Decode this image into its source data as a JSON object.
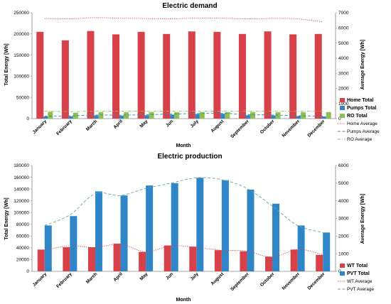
{
  "chart_data": [
    {
      "type": "bar",
      "title": "Electric demand",
      "xlabel": "Month",
      "ylabel": "Total Energy [Wh]",
      "y2label": "Average Energy [Wh]",
      "ylim": [
        0,
        250000
      ],
      "y2lim": [
        0,
        7000
      ],
      "yticks": [
        "0",
        "50000",
        "100000",
        "150000",
        "200000",
        "250000"
      ],
      "y2ticks": [
        "0",
        "1000",
        "2000",
        "3000",
        "4000",
        "5000",
        "6000",
        "7000"
      ],
      "categories": [
        "January",
        "February",
        "March",
        "April",
        "May",
        "Jun",
        "July",
        "August",
        "September",
        "October",
        "November",
        "December"
      ],
      "series": [
        {
          "name": "Home Total",
          "kind": "bar",
          "axis": "left",
          "color": "#D9414A",
          "values": [
            205000,
            185000,
            207000,
            199000,
            205000,
            200000,
            206000,
            205000,
            200000,
            206000,
            199000,
            200000
          ]
        },
        {
          "name": "Pumps Total",
          "kind": "bar",
          "axis": "left",
          "color": "#2E86C8",
          "values": [
            5000,
            5500,
            7500,
            7000,
            8000,
            9500,
            11000,
            11500,
            8000,
            7500,
            6000,
            5000
          ]
        },
        {
          "name": "RO Total",
          "kind": "bar",
          "axis": "left",
          "color": "#8CC04F",
          "values": [
            16000,
            14000,
            15500,
            15000,
            15500,
            15000,
            15500,
            15000,
            15500,
            15000,
            15000,
            15500
          ]
        },
        {
          "name": "Home Average",
          "kind": "line",
          "style": "dotted",
          "axis": "right",
          "color": "#D9414A",
          "values": [
            6620,
            6600,
            6680,
            6640,
            6620,
            6600,
            6640,
            6640,
            6600,
            6620,
            6600,
            6400
          ]
        },
        {
          "name": "Pumps Average",
          "kind": "line",
          "style": "dashed",
          "axis": "right",
          "color": "#2E86C8",
          "values": [
            170,
            180,
            240,
            225,
            260,
            300,
            340,
            360,
            260,
            240,
            190,
            160
          ]
        },
        {
          "name": "RO Average",
          "kind": "line",
          "style": "dash-dot",
          "axis": "right",
          "color": "#8CC04F",
          "values": [
            500,
            460,
            500,
            490,
            500,
            490,
            500,
            490,
            500,
            490,
            490,
            500
          ]
        }
      ],
      "legend": "right"
    },
    {
      "type": "bar",
      "title": "Electric production",
      "xlabel": "Month",
      "ylabel": "Total Energy [Wh]",
      "y2label": "Average Energy [Wh]",
      "ylim": [
        0,
        180000
      ],
      "y2lim": [
        0,
        6000
      ],
      "yticks": [
        "0",
        "20000",
        "40000",
        "60000",
        "80000",
        "100000",
        "120000",
        "140000",
        "160000",
        "180000"
      ],
      "y2ticks": [
        "0",
        "1000",
        "2000",
        "3000",
        "4000",
        "5000",
        "6000"
      ],
      "categories": [
        "January",
        "February",
        "March",
        "April",
        "May",
        "Jun",
        "July",
        "August",
        "September",
        "October",
        "November",
        "December"
      ],
      "series": [
        {
          "name": "WT Total",
          "kind": "bar",
          "axis": "left",
          "color": "#D9414A",
          "values": [
            37000,
            41000,
            41000,
            47000,
            33000,
            44000,
            42000,
            36000,
            34000,
            25000,
            37000,
            28000
          ]
        },
        {
          "name": "PVT Total",
          "kind": "bar",
          "axis": "left",
          "color": "#2E86C8",
          "values": [
            78000,
            94000,
            136000,
            129000,
            146000,
            150000,
            159000,
            155000,
            139000,
            115000,
            78000,
            66000
          ]
        },
        {
          "name": "WT Average",
          "kind": "line",
          "style": "dotted",
          "axis": "right",
          "color": "#D9414A",
          "values": [
            1200,
            1450,
            1350,
            1550,
            1100,
            1450,
            1350,
            1200,
            1150,
            800,
            1250,
            950
          ]
        },
        {
          "name": "PVT Average",
          "kind": "line",
          "style": "dashed",
          "axis": "right",
          "color": "#5AA89B",
          "values": [
            2600,
            3200,
            4400,
            4300,
            4700,
            5000,
            5300,
            5200,
            4700,
            3700,
            2600,
            2200
          ]
        }
      ],
      "legend": "right"
    }
  ]
}
